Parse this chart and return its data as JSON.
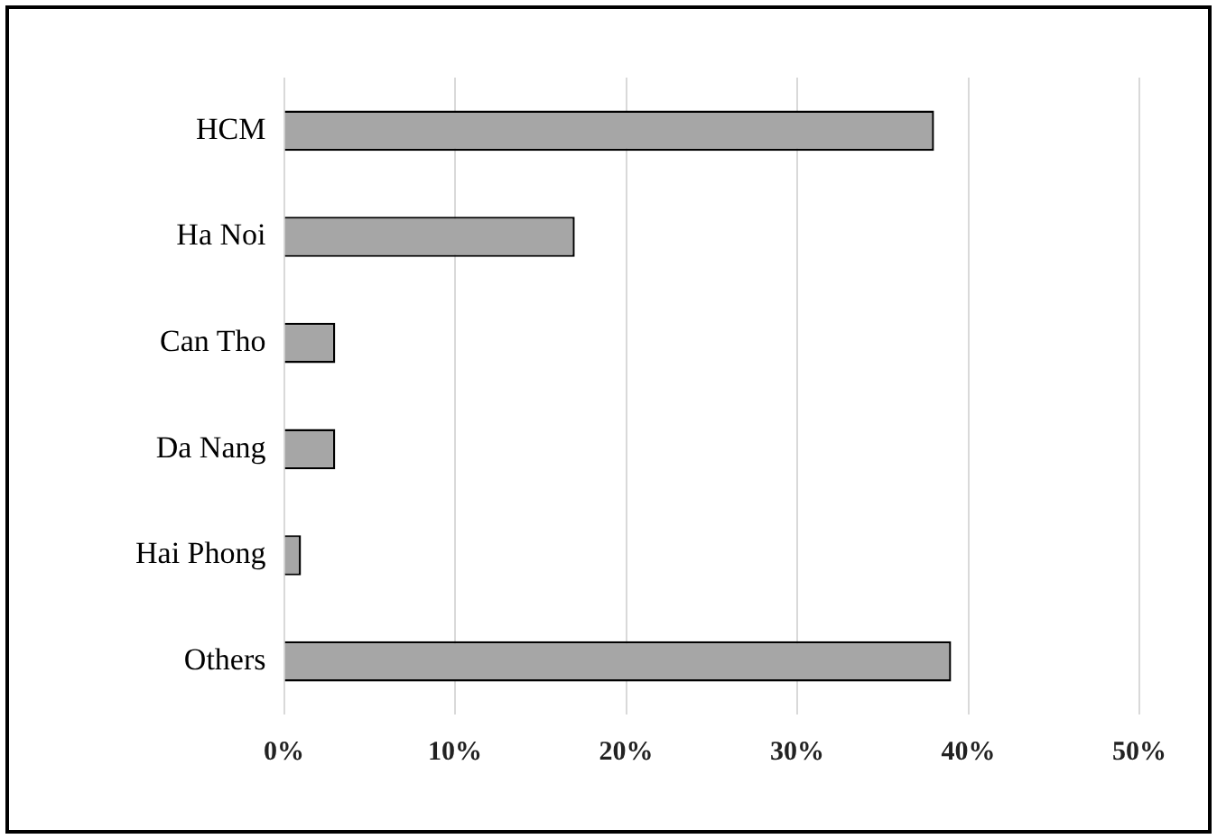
{
  "chart_data": {
    "type": "bar",
    "orientation": "horizontal",
    "categories": [
      "HCM",
      "Ha Noi",
      "Can Tho",
      "Da Nang",
      "Hai Phong",
      "Others"
    ],
    "values": [
      38,
      17,
      3,
      3,
      1,
      39
    ],
    "color": "#a6a6a6",
    "xlim": [
      0,
      50
    ],
    "xticks": [
      {
        "value": 0,
        "label": "0%"
      },
      {
        "value": 10,
        "label": "10%"
      },
      {
        "value": 20,
        "label": "20%"
      },
      {
        "value": 30,
        "label": "30%"
      },
      {
        "value": 40,
        "label": "40%"
      },
      {
        "value": 50,
        "label": "50%"
      }
    ],
    "grid": "x"
  }
}
